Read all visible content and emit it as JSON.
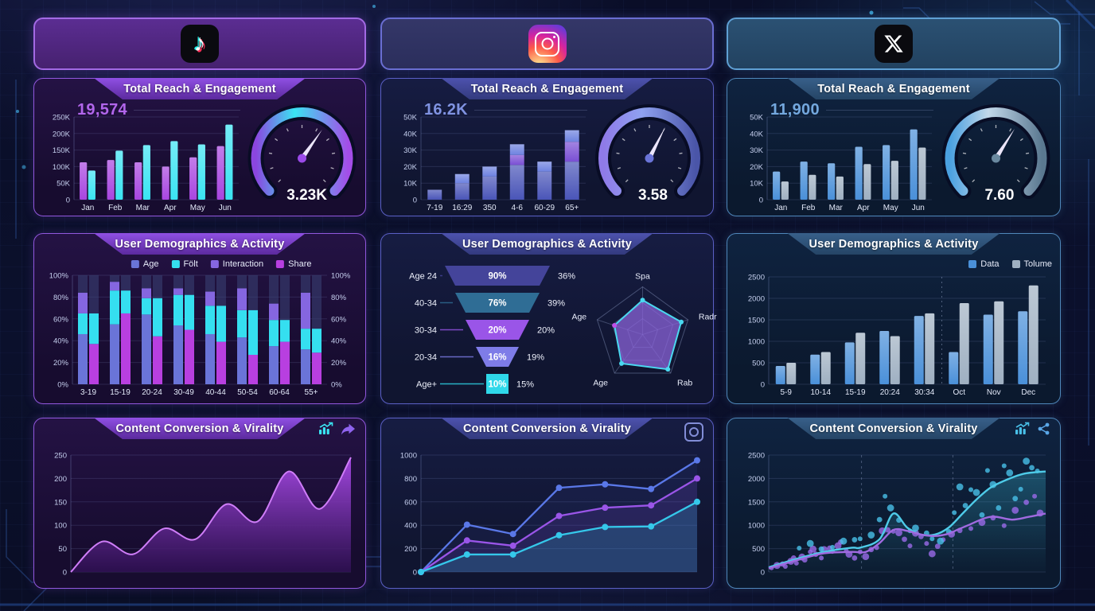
{
  "dashboard": {
    "columns": [
      {
        "id": "tiktok",
        "logo": "tiktok-logo-icon",
        "titles": {
          "reach": "Total Reach & Engagement",
          "demographics": "User Demographics & Activity",
          "conversion": "Content Conversion & Virality"
        },
        "reach_value": "19,574",
        "gauge_value": "3.23K"
      },
      {
        "id": "instagram",
        "logo": "instagram-logo-icon",
        "titles": {
          "reach": "Total Reach & Engagement",
          "demographics": "User Demographics & Activity",
          "conversion": "Content Conversion & Virality"
        },
        "reach_value": "16.2K",
        "gauge_value": "3.58"
      },
      {
        "id": "x",
        "logo": "x-logo-icon",
        "titles": {
          "reach": "Total Reach & Engagement",
          "demographics": "User Demographics & Activity",
          "conversion": "Content Conversion & Virality"
        },
        "reach_value": "11,900",
        "gauge_value": "7.60"
      }
    ]
  },
  "chart_data": [
    {
      "id": "tiktok-reach",
      "type": "bar",
      "title": "Total Reach & Engagement",
      "headline": "19,574",
      "categories": [
        "Jan",
        "Feb",
        "Mar",
        "Apr",
        "May",
        "Jun"
      ],
      "series": [
        {
          "name": "reach",
          "color": "#a845e0",
          "values": [
            113000,
            120000,
            113000,
            100000,
            128000,
            162000
          ]
        },
        {
          "name": "engagement",
          "color": "#3ae4f2",
          "values": [
            88000,
            148000,
            165000,
            177000,
            167000,
            227000
          ]
        }
      ],
      "ylim": [
        0,
        250000
      ],
      "yticks": [
        "0",
        "50K",
        "100K",
        "150K",
        "200K",
        "250K"
      ],
      "gauge": {
        "value": "3.23K",
        "fraction": 0.63,
        "colors": [
          "#8b46e0",
          "#3ae4f2",
          "#a44de8"
        ],
        "center": "#9a4ae8"
      }
    },
    {
      "id": "instagram-reach",
      "type": "stacked-bar",
      "title": "Total Reach & Engagement",
      "headline": "16.2K",
      "categories": [
        "7-19",
        "16:29",
        "350",
        "4-6",
        "60-29",
        "65+"
      ],
      "segment_colors": [
        "#4a55b8",
        "#7a4fd4",
        "#6e82e0"
      ],
      "values": [
        [
          6000,
          0,
          0
        ],
        [
          10000,
          0,
          5500
        ],
        [
          14000,
          0,
          6000
        ],
        [
          21000,
          6000,
          6500
        ],
        [
          17000,
          0,
          6000
        ],
        [
          23000,
          12000,
          7000
        ]
      ],
      "ylim": [
        0,
        50000
      ],
      "yticks": [
        "0",
        "10K",
        "20K",
        "30K",
        "40K",
        "50K"
      ],
      "gauge": {
        "value": "3.58",
        "fraction": 0.6,
        "colors": [
          "#8f7ae8",
          "#8fa2f0",
          "#4a55a8"
        ],
        "center": "#6a74d8"
      }
    },
    {
      "id": "x-reach",
      "type": "bar",
      "title": "Total Reach & Engagement",
      "headline": "11,900",
      "categories": [
        "Jan",
        "Feb",
        "Mar",
        "Apr",
        "May",
        "Jun"
      ],
      "series": [
        {
          "name": "blue",
          "color": "#4a90d9",
          "values": [
            17000,
            23000,
            22000,
            32000,
            33000,
            42500
          ]
        },
        {
          "name": "gray",
          "color": "#9fb0c2",
          "values": [
            11000,
            15000,
            14000,
            21500,
            23500,
            31500
          ]
        }
      ],
      "ylim": [
        0,
        50000
      ],
      "yticks": [
        "0",
        "10K",
        "20K",
        "30K",
        "40K",
        "50K"
      ],
      "gauge": {
        "value": "7.60",
        "fraction": 0.62,
        "colors": [
          "#4aa0e0",
          "#c2d8ea",
          "#5a7890"
        ],
        "center": "#6a89a0"
      }
    },
    {
      "id": "tiktok-demographics",
      "type": "stacked-bar-pairs",
      "title": "User Demographics & Activity",
      "legend": [
        {
          "label": "Age",
          "color": "#6a74d8"
        },
        {
          "label": "Fölt",
          "color": "#35dff0"
        },
        {
          "label": "Interaction",
          "color": "#8566e0"
        },
        {
          "label": "Share",
          "color": "#b83fe0"
        }
      ],
      "categories": [
        "3-19",
        "15-19",
        "20-24",
        "30-49",
        "40-44",
        "50-54",
        "60-64",
        "55+"
      ],
      "left_stack_pct": [
        [
          46,
          65,
          84
        ],
        [
          55,
          86,
          94
        ],
        [
          64,
          79,
          88
        ],
        [
          54,
          82,
          88
        ],
        [
          46,
          72,
          85
        ],
        [
          43,
          68,
          88
        ],
        [
          35,
          59,
          74
        ],
        [
          32,
          51,
          84
        ]
      ],
      "share_pct": [
        37,
        65,
        44,
        50,
        39,
        27,
        39,
        29
      ],
      "ylim": [
        0,
        100
      ],
      "yticks": [
        "0%",
        "20%",
        "40%",
        "60%",
        "80%",
        "100%"
      ],
      "yticks_right": true
    },
    {
      "id": "instagram-funnel",
      "type": "funnel",
      "title": "User Demographics & Activity",
      "rows": [
        {
          "label": "Age 24",
          "value": "90%",
          "side_value": "36%",
          "color": "#44449a"
        },
        {
          "label": "40-34",
          "value": "76%",
          "side_value": "39%",
          "color": "#2f6d95"
        },
        {
          "label": "30-34",
          "value": "20%",
          "side_value": "20%",
          "color": "#9a55e8"
        },
        {
          "label": "20-34",
          "value": "16%",
          "side_value": "19%",
          "color": "#7e7ce8"
        },
        {
          "label": "Age+",
          "value": "10%",
          "side_value": "15%",
          "color": "#2fd8ea"
        }
      ]
    },
    {
      "id": "instagram-radar",
      "type": "radar",
      "axes": [
        "Spa",
        "Radr",
        "Rab",
        "Age",
        "Age"
      ],
      "values": [
        0.72,
        0.85,
        0.9,
        0.75,
        0.62
      ],
      "fill": "#8a63d8",
      "stroke": "#4ad8f0"
    },
    {
      "id": "x-demographics",
      "type": "bar",
      "title": "User Demographics & Activity",
      "legend": [
        {
          "label": "Data",
          "color": "#4a90d9"
        },
        {
          "label": "Tolume",
          "color": "#9fb0c2"
        }
      ],
      "categories": [
        "5-9",
        "10-14",
        "15-19",
        "20:24",
        "30:34",
        "Oct",
        "Nov",
        "Dec"
      ],
      "series": [
        {
          "name": "Data",
          "color": "#4a90d9",
          "values": [
            425,
            690,
            975,
            1240,
            1590,
            750,
            1620,
            1700
          ]
        },
        {
          "name": "Tolume",
          "color": "#9fb0c2",
          "values": [
            500,
            750,
            1200,
            1120,
            1650,
            1890,
            1930,
            2300
          ]
        }
      ],
      "ylim": [
        0,
        2500
      ],
      "yticks": [
        "0",
        "500",
        "1000",
        "1500",
        "2000",
        "2500"
      ],
      "divider_after": 4
    },
    {
      "id": "tiktok-conversion",
      "type": "area",
      "title": "Content Conversion & Virality",
      "values": [
        0,
        65,
        38,
        93,
        70,
        145,
        108,
        215,
        135,
        245
      ],
      "ylim": [
        0,
        250
      ],
      "yticks": [
        "0",
        "50",
        "100",
        "150",
        "200",
        "250"
      ],
      "icons": [
        "chart-growth-icon",
        "share-arrow-icon"
      ]
    },
    {
      "id": "instagram-conversion",
      "type": "line",
      "title": "Content Conversion & Virality",
      "series": [
        {
          "name": "blue",
          "color": "#5a78e8",
          "values": [
            0,
            405,
            325,
            720,
            750,
            710,
            955
          ]
        },
        {
          "name": "purple",
          "color": "#9a55e8",
          "values": [
            0,
            270,
            225,
            480,
            550,
            570,
            800
          ]
        },
        {
          "name": "cyan",
          "color": "#35c8ea",
          "values": [
            0,
            150,
            150,
            315,
            385,
            390,
            600
          ]
        }
      ],
      "ylim": [
        0,
        1000
      ],
      "yticks": [
        "0",
        "200",
        "400",
        "600",
        "800",
        "1000"
      ],
      "icons": [
        "instagram-icon"
      ]
    },
    {
      "id": "x-conversion",
      "type": "scatter",
      "title": "Content Conversion & Virality",
      "ylim": [
        0,
        2500
      ],
      "yticks": [
        "0",
        "500",
        "1000",
        "1500",
        "2000",
        "2500"
      ],
      "vlines": [
        0.335,
        0.665
      ],
      "trend": [
        {
          "color": "#4ecbe8",
          "points": [
            [
              0,
              100
            ],
            [
              10,
              280
            ],
            [
              20,
              430
            ],
            [
              30,
              520
            ],
            [
              33,
              520
            ],
            [
              40,
              700
            ],
            [
              45,
              1250
            ],
            [
              50,
              950
            ],
            [
              55,
              800
            ],
            [
              60,
              800
            ],
            [
              65,
              950
            ],
            [
              70,
              1250
            ],
            [
              75,
              1550
            ],
            [
              80,
              1800
            ],
            [
              85,
              1950
            ],
            [
              92,
              2100
            ],
            [
              100,
              2150
            ]
          ]
        },
        {
          "color": "#a06ae0",
          "points": [
            [
              0,
              80
            ],
            [
              10,
              250
            ],
            [
              20,
              400
            ],
            [
              30,
              430
            ],
            [
              35,
              430
            ],
            [
              40,
              620
            ],
            [
              45,
              900
            ],
            [
              50,
              880
            ],
            [
              55,
              800
            ],
            [
              60,
              770
            ],
            [
              65,
              820
            ],
            [
              68,
              900
            ],
            [
              72,
              1000
            ],
            [
              78,
              1150
            ],
            [
              82,
              1180
            ],
            [
              88,
              1120
            ],
            [
              94,
              1180
            ],
            [
              100,
              1250
            ]
          ]
        }
      ],
      "points": [
        {
          "color": "#9a6ae8",
          "data": [
            [
              1,
              90
            ],
            [
              3,
              140
            ],
            [
              5,
              170
            ],
            [
              6,
              120
            ],
            [
              8,
              230
            ],
            [
              9,
              300
            ],
            [
              10,
              190
            ],
            [
              12,
              320
            ],
            [
              13,
              260
            ],
            [
              15,
              430
            ],
            [
              16,
              490
            ],
            [
              17,
              380
            ],
            [
              19,
              300
            ],
            [
              20,
              480
            ],
            [
              22,
              510
            ],
            [
              23,
              440
            ],
            [
              25,
              560
            ],
            [
              26,
              640
            ],
            [
              28,
              450
            ],
            [
              29,
              380
            ],
            [
              31,
              300
            ],
            [
              33,
              430
            ],
            [
              35,
              330
            ],
            [
              37,
              480
            ],
            [
              39,
              520
            ],
            [
              41,
              880
            ],
            [
              43,
              900
            ],
            [
              45,
              870
            ],
            [
              47,
              840
            ],
            [
              49,
              700
            ],
            [
              51,
              560
            ],
            [
              53,
              830
            ],
            [
              55,
              760
            ],
            [
              57,
              610
            ],
            [
              59,
              390
            ],
            [
              61,
              550
            ],
            [
              63,
              690
            ],
            [
              66,
              810
            ],
            [
              69,
              890
            ],
            [
              73,
              930
            ],
            [
              77,
              1060
            ],
            [
              81,
              1160
            ],
            [
              85,
              990
            ],
            [
              89,
              1320
            ],
            [
              93,
              1490
            ],
            [
              96,
              1620
            ],
            [
              98,
              1260
            ]
          ]
        },
        {
          "color": "#49c0e8",
          "data": [
            [
              11,
              510
            ],
            [
              15,
              610
            ],
            [
              19,
              490
            ],
            [
              23,
              530
            ],
            [
              27,
              660
            ],
            [
              31,
              690
            ],
            [
              33,
              710
            ],
            [
              37,
              790
            ],
            [
              40,
              1120
            ],
            [
              42,
              1620
            ],
            [
              44,
              1370
            ],
            [
              47,
              1110
            ],
            [
              51,
              880
            ],
            [
              53,
              940
            ],
            [
              57,
              830
            ],
            [
              59,
              710
            ],
            [
              62,
              660
            ],
            [
              65,
              860
            ],
            [
              67,
              1270
            ],
            [
              69,
              1820
            ],
            [
              71,
              1420
            ],
            [
              73,
              1760
            ],
            [
              75,
              1700
            ],
            [
              77,
              1220
            ],
            [
              79,
              2170
            ],
            [
              81,
              1870
            ],
            [
              83,
              1370
            ],
            [
              85,
              2270
            ],
            [
              87,
              2120
            ],
            [
              89,
              1570
            ],
            [
              91,
              1770
            ],
            [
              93,
              2370
            ],
            [
              95,
              2230
            ],
            [
              97,
              2160
            ]
          ]
        }
      ],
      "icons": [
        "chart-growth-icon",
        "share-nodes-icon"
      ]
    }
  ]
}
